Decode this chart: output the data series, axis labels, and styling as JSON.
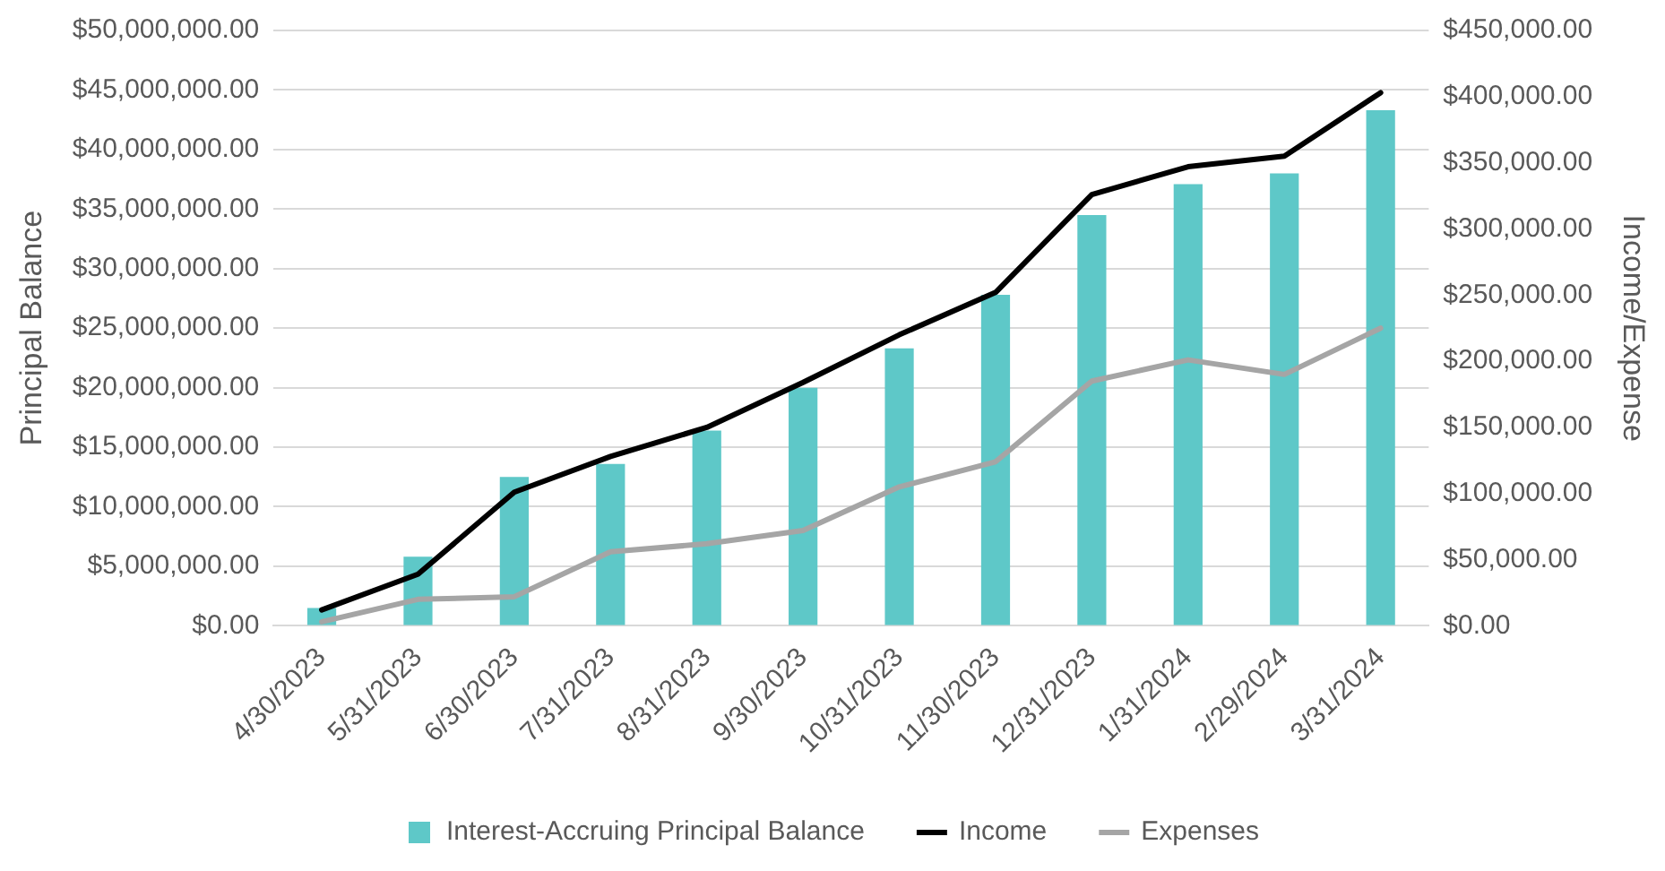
{
  "chart_data": {
    "type": "bar",
    "ylabel": "Principal Balance",
    "y2label": "Income/Expense",
    "categories": [
      "4/30/2023",
      "5/31/2023",
      "6/30/2023",
      "7/31/2023",
      "8/31/2023",
      "9/30/2023",
      "10/31/2023",
      "11/30/2023",
      "12/31/2023",
      "1/31/2024",
      "2/29/2024",
      "3/31/2024"
    ],
    "series": [
      {
        "name": "Interest-Accruing Principal Balance",
        "color": "#5ec8c8",
        "values": [
          1500000,
          5800000,
          12500000,
          13600000,
          16400000,
          20000000,
          23300000,
          27800000,
          34500000,
          37100000,
          38000000,
          43300000
        ]
      },
      {
        "name": "Income",
        "type": "line",
        "axis": "y2",
        "color": "#000000",
        "values": [
          12000,
          39000,
          101000,
          128000,
          150000,
          184000,
          220000,
          252000,
          326000,
          347000,
          355000,
          403000
        ]
      },
      {
        "name": "Expenses",
        "type": "line",
        "axis": "y2",
        "color": "#a5a5a5",
        "values": [
          3000,
          20000,
          22000,
          56000,
          62000,
          72000,
          105000,
          124000,
          185000,
          201000,
          190000,
          225000
        ]
      }
    ],
    "ylim": [
      0,
      50000000
    ],
    "yticks": [
      {
        "value": 0,
        "label": "$0.00"
      },
      {
        "value": 5000000,
        "label": "$5,000,000.00"
      },
      {
        "value": 10000000,
        "label": "$10,000,000.00"
      },
      {
        "value": 15000000,
        "label": "$15,000,000.00"
      },
      {
        "value": 20000000,
        "label": "$20,000,000.00"
      },
      {
        "value": 25000000,
        "label": "$25,000,000.00"
      },
      {
        "value": 30000000,
        "label": "$30,000,000.00"
      },
      {
        "value": 35000000,
        "label": "$35,000,000.00"
      },
      {
        "value": 40000000,
        "label": "$40,000,000.00"
      },
      {
        "value": 45000000,
        "label": "$45,000,000.00"
      },
      {
        "value": 50000000,
        "label": "$50,000,000.00"
      }
    ],
    "y2lim": [
      0,
      450000
    ],
    "y2ticks": [
      {
        "value": 0,
        "label": "$0.00"
      },
      {
        "value": 50000,
        "label": "$50,000.00"
      },
      {
        "value": 100000,
        "label": "$100,000.00"
      },
      {
        "value": 150000,
        "label": "$150,000.00"
      },
      {
        "value": 200000,
        "label": "$200,000.00"
      },
      {
        "value": 250000,
        "label": "$250,000.00"
      },
      {
        "value": 300000,
        "label": "$300,000.00"
      },
      {
        "value": 350000,
        "label": "$350,000.00"
      },
      {
        "value": 400000,
        "label": "$400,000.00"
      },
      {
        "value": 450000,
        "label": "$450,000.00"
      }
    ],
    "grid": "y",
    "legend": "bottom",
    "marker": "none",
    "line_style": "solid"
  }
}
